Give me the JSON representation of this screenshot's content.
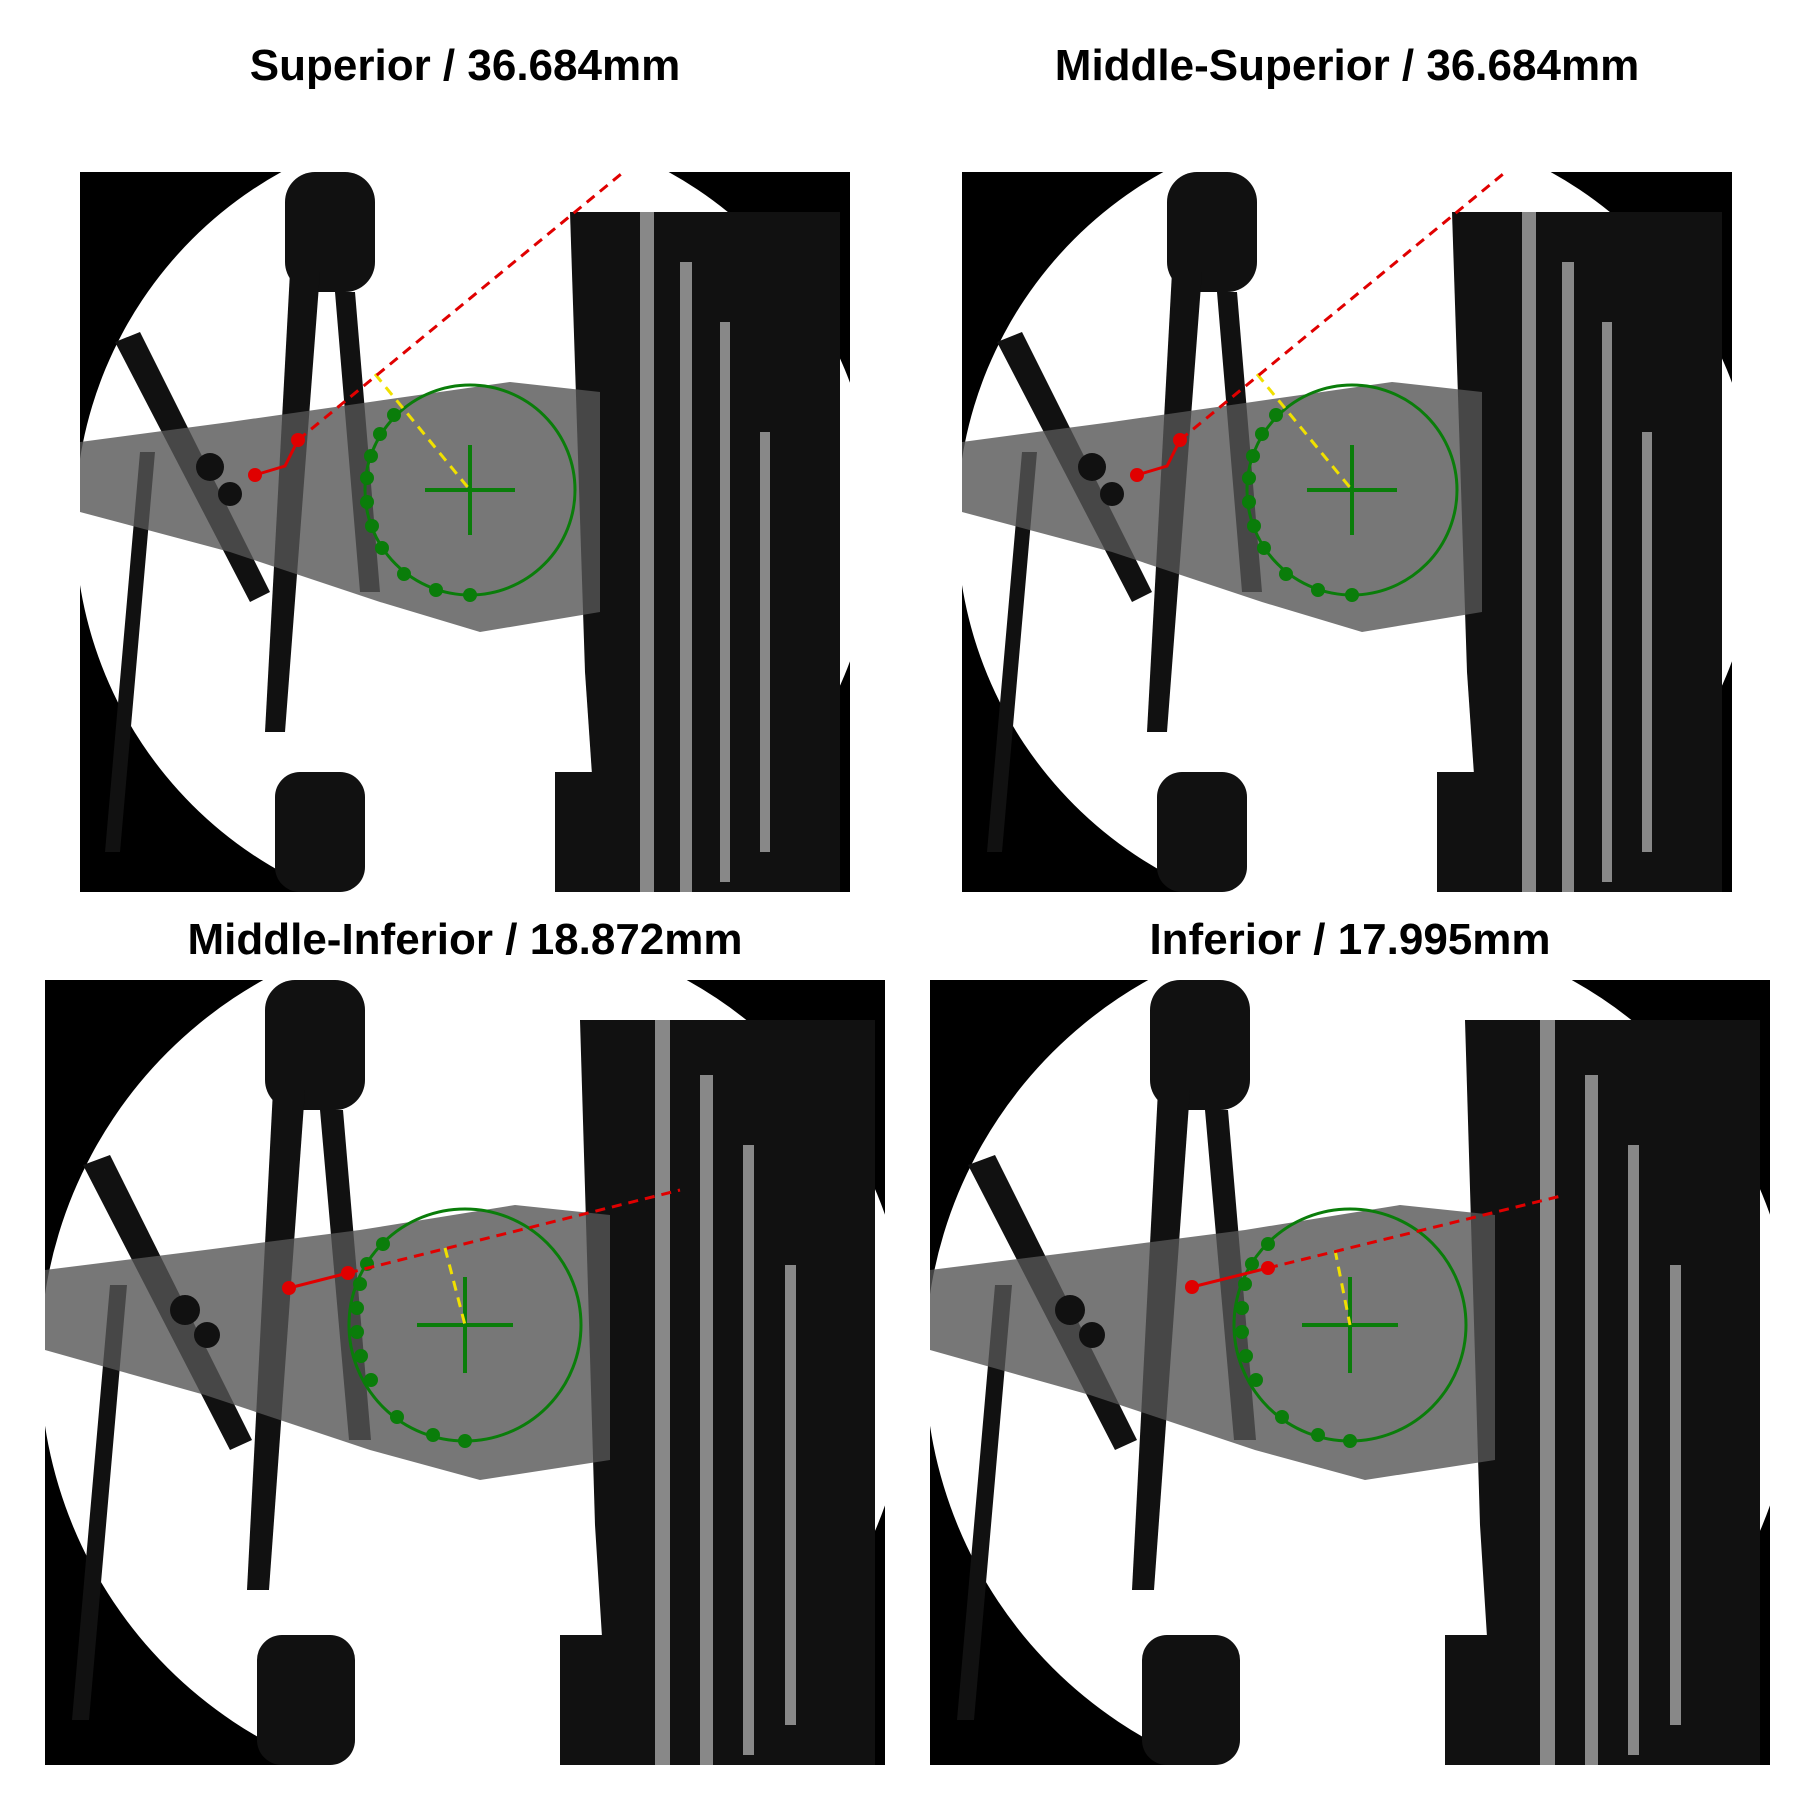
{
  "figure": {
    "panels": [
      {
        "title": "Superior / 36.684mm"
      },
      {
        "title": "Middle-Superior / 36.684mm"
      },
      {
        "title": "Middle-Inferior / 18.872mm"
      },
      {
        "title": "Inferior / 17.995mm"
      }
    ]
  },
  "colors": {
    "background": "#000000",
    "field": "#ffffff",
    "tissue": "#5a5a5a",
    "fit_circle": "#0a7d0a",
    "fit_points": "#0a7d0a",
    "trajectory": "#e00000",
    "perpendicular": "#f0e000"
  },
  "icons": {
    "fluoroscopy": "fluoroscopy-image",
    "center": "crosshair-icon"
  }
}
